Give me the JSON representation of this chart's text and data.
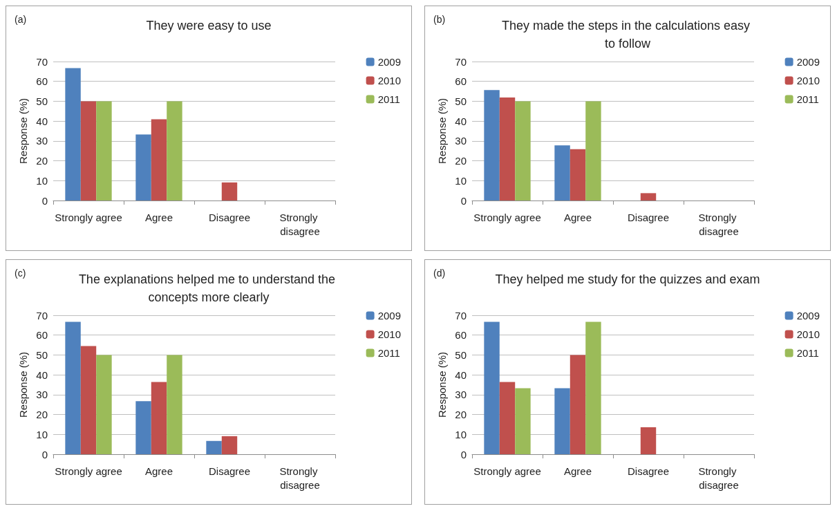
{
  "chart_data": [
    {
      "type": "bar",
      "title": "They were easy to use",
      "annotations": [
        "(a)"
      ],
      "ylabel": "Response (%)",
      "categories": [
        "Strongly agree",
        "Agree",
        "Disagree",
        "Strongly disagree"
      ],
      "ylim": [
        0,
        70
      ],
      "yticks": [
        0,
        10,
        20,
        30,
        40,
        50,
        60,
        70
      ],
      "grid": "y",
      "legend": "right",
      "series": [
        {
          "name": "2009",
          "color": "#4f81bd",
          "values": [
            66.7,
            33.3,
            0,
            0
          ]
        },
        {
          "name": "2010",
          "color": "#c0504d",
          "values": [
            50,
            40.9,
            9.1,
            0
          ]
        },
        {
          "name": "2011",
          "color": "#9bbb59",
          "values": [
            50,
            50,
            0,
            0
          ]
        }
      ]
    },
    {
      "type": "bar",
      "title": "They made the steps in the calculations easy to follow",
      "annotations": [
        "(b)"
      ],
      "ylabel": "Response (%)",
      "categories": [
        "Strongly agree",
        "Agree",
        "Disagree",
        "Strongly disagree"
      ],
      "ylim": [
        0,
        70
      ],
      "yticks": [
        0,
        10,
        20,
        30,
        40,
        50,
        60,
        70
      ],
      "grid": "y",
      "legend": "right",
      "series": [
        {
          "name": "2009",
          "color": "#4f81bd",
          "values": [
            55.6,
            27.8,
            0,
            0
          ]
        },
        {
          "name": "2010",
          "color": "#c0504d",
          "values": [
            51.9,
            25.9,
            3.7,
            0
          ]
        },
        {
          "name": "2011",
          "color": "#9bbb59",
          "values": [
            50,
            50,
            0,
            0
          ]
        }
      ]
    },
    {
      "type": "bar",
      "title": "The explanations helped me to understand the concepts more clearly",
      "annotations": [
        "(c)"
      ],
      "ylabel": "Response (%)",
      "categories": [
        "Strongly agree",
        "Agree",
        "Disagree",
        "Strongly disagree"
      ],
      "ylim": [
        0,
        70
      ],
      "yticks": [
        0,
        10,
        20,
        30,
        40,
        50,
        60,
        70
      ],
      "grid": "y",
      "legend": "right",
      "series": [
        {
          "name": "2009",
          "color": "#4f81bd",
          "values": [
            66.7,
            26.7,
            6.7,
            0
          ]
        },
        {
          "name": "2010",
          "color": "#c0504d",
          "values": [
            54.5,
            36.4,
            9.1,
            0
          ]
        },
        {
          "name": "2011",
          "color": "#9bbb59",
          "values": [
            50,
            50,
            0,
            0
          ]
        }
      ]
    },
    {
      "type": "bar",
      "title": "They helped me study for the quizzes and exam",
      "annotations": [
        "(d)"
      ],
      "ylabel": "Response (%)",
      "categories": [
        "Strongly agree",
        "Agree",
        "Disagree",
        "Strongly disagree"
      ],
      "ylim": [
        0,
        70
      ],
      "yticks": [
        0,
        10,
        20,
        30,
        40,
        50,
        60,
        70
      ],
      "grid": "y",
      "legend": "right",
      "series": [
        {
          "name": "2009",
          "color": "#4f81bd",
          "values": [
            66.7,
            33.3,
            0,
            0
          ]
        },
        {
          "name": "2010",
          "color": "#c0504d",
          "values": [
            36.4,
            50,
            13.6,
            0
          ]
        },
        {
          "name": "2011",
          "color": "#9bbb59",
          "values": [
            33.3,
            66.7,
            0,
            0
          ]
        }
      ]
    }
  ]
}
